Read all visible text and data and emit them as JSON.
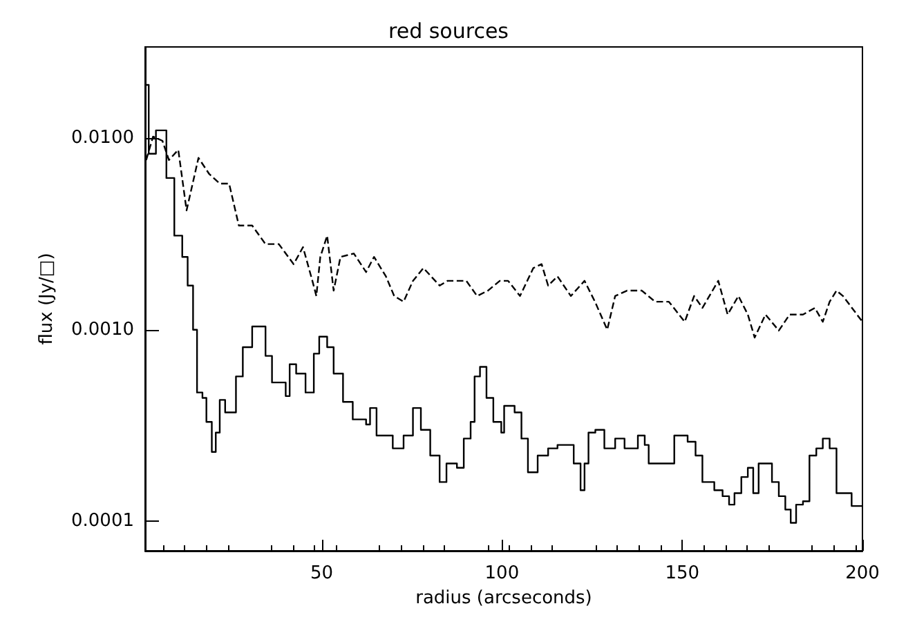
{
  "chart_data": {
    "type": "line",
    "title": "red sources",
    "xlabel": "radius (arcseconds)",
    "ylabel": "flux (Jy/□)",
    "log": "y",
    "grid": false,
    "marker": "none",
    "xlim": [
      1,
      200
    ],
    "xticks": [
      50,
      100,
      150,
      200
    ],
    "ylim": [
      7e-05,
      0.03
    ],
    "yticks": [
      {
        "value": 0.01,
        "label": "0.0100"
      },
      {
        "value": 0.001,
        "label": "0.0010"
      },
      {
        "value": 0.0001,
        "label": "0.0001"
      }
    ],
    "series": [
      {
        "type": "step",
        "color": "#000000",
        "line_style": "solid",
        "x": [
          1,
          2,
          4,
          6.9,
          9.1,
          11.3,
          12.8,
          14.3,
          15.4,
          16.9,
          18,
          19.5,
          20.6,
          21.7,
          23.2,
          26.2,
          28.1,
          30.7,
          32.9,
          34.4,
          36.2,
          40,
          41.1,
          42.9,
          45.5,
          47.8,
          49.3,
          51.5,
          53.3,
          55.9,
          58.6,
          62.3,
          63.4,
          65.2,
          69.7,
          72.7,
          75.3,
          77.5,
          80.1,
          82.7,
          84.6,
          87.5,
          89.4,
          91.3,
          92.4,
          93.9,
          95.7,
          97.6,
          99.8,
          100.6,
          101.7,
          103.5,
          105.4,
          107.2,
          109.9,
          112.8,
          115.4,
          117.3,
          119.9,
          121.8,
          122.9,
          124,
          125.9,
          128.4,
          131.4,
          134,
          137.7,
          139.6,
          140.7,
          143.3,
          145.9,
          147.8,
          151.5,
          153.7,
          155.6,
          158.9,
          161.2,
          163,
          164.5,
          166.4,
          168.2,
          169.7,
          171.2,
          173.1,
          174.9,
          176.8,
          178.6,
          180.1,
          181.6,
          183.5,
          185.3,
          187.2,
          189,
          190.9,
          192.8,
          194.6,
          197,
          200
        ],
        "values": [
          0.019,
          0.0083,
          0.011,
          0.0062,
          0.0031,
          0.0024,
          0.0017,
          0.001,
          0.00047,
          0.00044,
          0.00033,
          0.00023,
          0.00029,
          0.00043,
          0.00037,
          0.00057,
          0.00081,
          0.00104,
          0.00104,
          0.00073,
          0.00053,
          0.00045,
          0.00066,
          0.00059,
          0.00047,
          0.00075,
          0.00092,
          0.00081,
          0.00059,
          0.00042,
          0.00034,
          0.00032,
          0.00039,
          0.00028,
          0.00024,
          0.00028,
          0.00039,
          0.0003,
          0.00022,
          0.00016,
          0.0002,
          0.00019,
          0.00027,
          0.00033,
          0.00057,
          0.00064,
          0.00044,
          0.00033,
          0.00029,
          0.0004,
          0.0004,
          0.00037,
          0.00027,
          0.00018,
          0.00022,
          0.00024,
          0.00025,
          0.00025,
          0.0002,
          0.000145,
          0.0002,
          0.00029,
          0.0003,
          0.00024,
          0.00027,
          0.00024,
          0.00028,
          0.00025,
          0.0002,
          0.0002,
          0.0002,
          0.00028,
          0.00026,
          0.00022,
          0.00016,
          0.000145,
          0.000135,
          0.000122,
          0.00014,
          0.00017,
          0.00019,
          0.00014,
          0.0002,
          0.0002,
          0.00016,
          0.000135,
          0.000115,
          9.8e-05,
          0.000122,
          0.000127,
          0.00022,
          0.00024,
          0.00027,
          0.00024,
          0.00014,
          0.00014,
          0.00012,
          0.00012
        ]
      },
      {
        "color": "#000000",
        "line_style": "dashed",
        "x": [
          1.3,
          3.2,
          5.8,
          7.6,
          10.2,
          12.5,
          15.8,
          18.8,
          21.7,
          24.3,
          27,
          30.7,
          34.4,
          38.1,
          42.2,
          44.8,
          47.4,
          48.5,
          49.6,
          51.5,
          53.3,
          55.2,
          58.9,
          62.3,
          64.5,
          67.8,
          70.1,
          72.7,
          75.3,
          78.2,
          82.7,
          84.9,
          90.1,
          93.1,
          96.1,
          99.4,
          101.7,
          105,
          108.7,
          111,
          112.8,
          115.4,
          119.1,
          122.9,
          125.8,
          129.2,
          131.4,
          134.7,
          138.8,
          142.5,
          146.3,
          150.7,
          153.3,
          155.6,
          160,
          162.6,
          165.6,
          168.2,
          170.1,
          173.1,
          176.8,
          179.8,
          183.5,
          186.8,
          189,
          190.9,
          192.8,
          194.6,
          200
        ],
        "values": [
          0.0077,
          0.0102,
          0.0097,
          0.0077,
          0.0087,
          0.0042,
          0.0079,
          0.0065,
          0.0058,
          0.0058,
          0.0035,
          0.0035,
          0.0028,
          0.0028,
          0.0022,
          0.0027,
          0.0018,
          0.0015,
          0.0024,
          0.0031,
          0.0016,
          0.0024,
          0.0025,
          0.002,
          0.0024,
          0.0019,
          0.0015,
          0.0014,
          0.0018,
          0.0021,
          0.0017,
          0.0018,
          0.0018,
          0.0015,
          0.0016,
          0.0018,
          0.0018,
          0.0015,
          0.0021,
          0.0022,
          0.0017,
          0.0019,
          0.0015,
          0.0018,
          0.0014,
          0.001,
          0.0015,
          0.0016,
          0.0016,
          0.0014,
          0.0014,
          0.0011,
          0.0015,
          0.0013,
          0.0018,
          0.0012,
          0.0015,
          0.0012,
          0.00091,
          0.0012,
          0.00099,
          0.0012,
          0.0012,
          0.0013,
          0.0011,
          0.0014,
          0.0016,
          0.0015,
          0.0011
        ]
      }
    ]
  }
}
